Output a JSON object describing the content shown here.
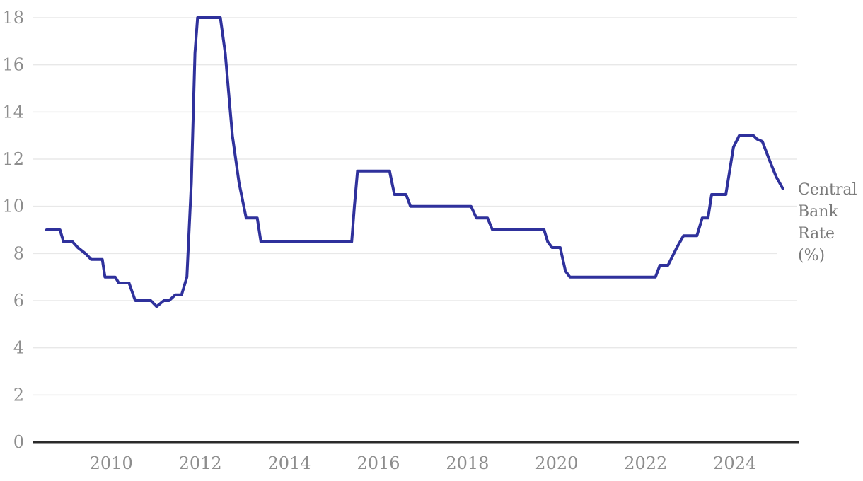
{
  "chart_data": {
    "type": "line",
    "title": "",
    "series_label": "Central Bank Rate (%)",
    "xlabel": "",
    "ylabel": "",
    "xlim": [
      2008.25,
      2025.45
    ],
    "ylim": [
      0,
      18
    ],
    "grid": "horizontal",
    "legend_position": "right-of-line-end",
    "x_ticks": [
      2010,
      2012,
      2014,
      2016,
      2018,
      2020,
      2022,
      2024
    ],
    "y_ticks": [
      0,
      2,
      4,
      6,
      8,
      10,
      12,
      14,
      16,
      18
    ],
    "colors": {
      "line": "#2f319c",
      "grid": "#e8e8e8",
      "axis": "#2a2a2a",
      "tick_label": "#8d8d8d",
      "series_label": "#7a7a7a",
      "background": "#ffffff"
    },
    "series": [
      {
        "name": "Central Bank Rate (%)",
        "points": [
          [
            2008.55,
            9.0
          ],
          [
            2008.85,
            9.0
          ],
          [
            2008.93,
            8.5
          ],
          [
            2009.13,
            8.5
          ],
          [
            2009.25,
            8.25
          ],
          [
            2009.42,
            8.0
          ],
          [
            2009.55,
            7.75
          ],
          [
            2009.8,
            7.75
          ],
          [
            2009.86,
            7.0
          ],
          [
            2010.09,
            7.0
          ],
          [
            2010.17,
            6.75
          ],
          [
            2010.4,
            6.75
          ],
          [
            2010.54,
            6.0
          ],
          [
            2010.89,
            6.0
          ],
          [
            2011.02,
            5.75
          ],
          [
            2011.18,
            6.0
          ],
          [
            2011.3,
            6.0
          ],
          [
            2011.44,
            6.25
          ],
          [
            2011.58,
            6.25
          ],
          [
            2011.7,
            7.0
          ],
          [
            2011.8,
            11.0
          ],
          [
            2011.88,
            16.5
          ],
          [
            2011.94,
            18.0
          ],
          [
            2012.45,
            18.0
          ],
          [
            2012.56,
            16.5
          ],
          [
            2012.72,
            13.0
          ],
          [
            2012.87,
            11.0
          ],
          [
            2013.03,
            9.5
          ],
          [
            2013.28,
            9.5
          ],
          [
            2013.36,
            8.5
          ],
          [
            2015.4,
            8.5
          ],
          [
            2015.46,
            10.0
          ],
          [
            2015.53,
            11.5
          ],
          [
            2016.25,
            11.5
          ],
          [
            2016.36,
            10.5
          ],
          [
            2016.62,
            10.5
          ],
          [
            2016.72,
            10.0
          ],
          [
            2018.08,
            10.0
          ],
          [
            2018.2,
            9.5
          ],
          [
            2018.45,
            9.5
          ],
          [
            2018.56,
            9.0
          ],
          [
            2019.72,
            9.0
          ],
          [
            2019.8,
            8.5
          ],
          [
            2019.9,
            8.25
          ],
          [
            2020.08,
            8.25
          ],
          [
            2020.2,
            7.25
          ],
          [
            2020.3,
            7.0
          ],
          [
            2022.22,
            7.0
          ],
          [
            2022.32,
            7.5
          ],
          [
            2022.5,
            7.5
          ],
          [
            2022.7,
            8.25
          ],
          [
            2022.85,
            8.75
          ],
          [
            2023.15,
            8.75
          ],
          [
            2023.27,
            9.5
          ],
          [
            2023.4,
            9.5
          ],
          [
            2023.48,
            10.5
          ],
          [
            2023.8,
            10.5
          ],
          [
            2023.97,
            12.5
          ],
          [
            2024.1,
            13.0
          ],
          [
            2024.42,
            13.0
          ],
          [
            2024.5,
            12.85
          ],
          [
            2024.62,
            12.75
          ],
          [
            2024.77,
            12.0
          ],
          [
            2024.93,
            11.25
          ],
          [
            2025.08,
            10.75
          ]
        ]
      }
    ]
  }
}
